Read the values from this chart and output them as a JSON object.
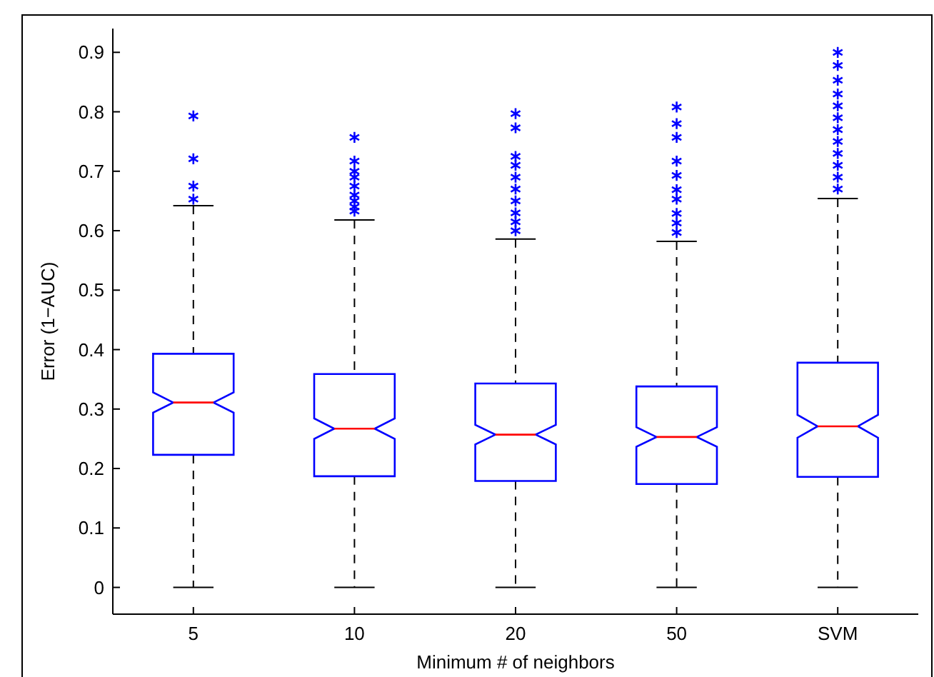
{
  "chart_data": {
    "type": "box",
    "xlabel": "Minimum # of neighbors",
    "ylabel": "Error (1−AUC)",
    "categories": [
      "5",
      "10",
      "20",
      "50",
      "SVM"
    ],
    "ylim": [
      -0.045,
      0.94
    ],
    "yticks": [
      0,
      0.1,
      0.2,
      0.3,
      0.4,
      0.5,
      0.6,
      0.7,
      0.8,
      0.9
    ],
    "grid": false,
    "marker": "star",
    "series": [
      {
        "color": "#0000ff",
        "boxes": [
          {
            "low": 0,
            "q1": 0.223,
            "median": 0.311,
            "q3": 0.393,
            "high": 0.642,
            "outliers": [
              0.793,
              0.721,
              0.675,
              0.653
            ]
          },
          {
            "low": 0,
            "q1": 0.187,
            "median": 0.267,
            "q3": 0.359,
            "high": 0.618,
            "outliers": [
              0.757,
              0.717,
              0.7,
              0.69,
              0.675,
              0.66,
              0.65,
              0.64,
              0.633
            ]
          },
          {
            "low": 0,
            "q1": 0.179,
            "median": 0.257,
            "q3": 0.343,
            "high": 0.586,
            "outliers": [
              0.797,
              0.773,
              0.725,
              0.71,
              0.69,
              0.67,
              0.65,
              0.63,
              0.615,
              0.6
            ]
          },
          {
            "low": 0,
            "q1": 0.174,
            "median": 0.253,
            "q3": 0.338,
            "high": 0.582,
            "outliers": [
              0.808,
              0.78,
              0.757,
              0.717,
              0.693,
              0.669,
              0.653,
              0.629,
              0.613,
              0.597
            ]
          },
          {
            "low": 0,
            "q1": 0.186,
            "median": 0.271,
            "q3": 0.378,
            "high": 0.654,
            "outliers": [
              0.9,
              0.878,
              0.853,
              0.83,
              0.81,
              0.79,
              0.77,
              0.75,
              0.73,
              0.71,
              0.69,
              0.67
            ]
          }
        ]
      }
    ]
  }
}
